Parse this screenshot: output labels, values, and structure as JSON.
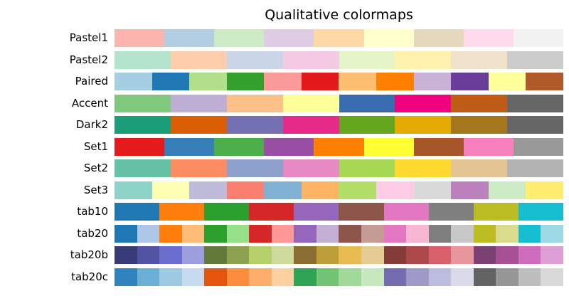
{
  "title": "Qualitative colormaps",
  "chart_data": {
    "type": "heatmap",
    "title": "Qualitative colormaps",
    "description": "Horizontal strips of discrete, equal-width color bands; one strip per qualitative colormap, labeled on the left.",
    "legend_position": "none",
    "grid": false,
    "rows": [
      {
        "name": "Pastel1",
        "colors": [
          "#fbb4ae",
          "#b3cde3",
          "#ccebc5",
          "#decbe4",
          "#fed9a6",
          "#ffffcc",
          "#e5d8bd",
          "#fddaec",
          "#f2f2f2"
        ]
      },
      {
        "name": "Pastel2",
        "colors": [
          "#b3e2cd",
          "#fdcdac",
          "#cbd5e8",
          "#f4cae4",
          "#e6f5c9",
          "#fff2ae",
          "#f1e2cc",
          "#cccccc"
        ]
      },
      {
        "name": "Paired",
        "colors": [
          "#a6cee3",
          "#1f78b4",
          "#b2df8a",
          "#33a02c",
          "#fb9a99",
          "#e31a1c",
          "#fdbf6f",
          "#ff7f00",
          "#cab2d6",
          "#6a3d9a",
          "#ffff99",
          "#b15928"
        ]
      },
      {
        "name": "Accent",
        "colors": [
          "#7fc97f",
          "#beaed4",
          "#fdc086",
          "#ffff99",
          "#386cb0",
          "#f0027f",
          "#bf5b17",
          "#666666"
        ]
      },
      {
        "name": "Dark2",
        "colors": [
          "#1b9e77",
          "#d95f02",
          "#7570b3",
          "#e7298a",
          "#66a61e",
          "#e6ab02",
          "#a6761d",
          "#666666"
        ]
      },
      {
        "name": "Set1",
        "colors": [
          "#e41a1c",
          "#377eb8",
          "#4daf4a",
          "#984ea3",
          "#ff7f00",
          "#ffff33",
          "#a65628",
          "#f781bf",
          "#999999"
        ]
      },
      {
        "name": "Set2",
        "colors": [
          "#66c2a5",
          "#fc8d62",
          "#8da0cb",
          "#e78ac3",
          "#a6d854",
          "#ffd92f",
          "#e5c494",
          "#b3b3b3"
        ]
      },
      {
        "name": "Set3",
        "colors": [
          "#8dd3c7",
          "#ffffb3",
          "#bebada",
          "#fb8072",
          "#80b1d3",
          "#fdb462",
          "#b3de69",
          "#fccde5",
          "#d9d9d9",
          "#bc80bd",
          "#ccebc5",
          "#ffed6f"
        ]
      },
      {
        "name": "tab10",
        "colors": [
          "#1f77b4",
          "#ff7f0e",
          "#2ca02c",
          "#d62728",
          "#9467bd",
          "#8c564b",
          "#e377c2",
          "#7f7f7f",
          "#bcbd22",
          "#17becf"
        ]
      },
      {
        "name": "tab20",
        "colors": [
          "#1f77b4",
          "#aec7e8",
          "#ff7f0e",
          "#ffbb78",
          "#2ca02c",
          "#98df8a",
          "#d62728",
          "#ff9896",
          "#9467bd",
          "#c5b0d5",
          "#8c564b",
          "#c49c94",
          "#e377c2",
          "#f7b6d2",
          "#7f7f7f",
          "#c7c7c7",
          "#bcbd22",
          "#dbdb8d",
          "#17becf",
          "#9edae5"
        ]
      },
      {
        "name": "tab20b",
        "colors": [
          "#393b79",
          "#5254a3",
          "#6b6ecf",
          "#9c9ede",
          "#637939",
          "#8ca252",
          "#b5cf6b",
          "#cedb9c",
          "#8c6d31",
          "#bd9e39",
          "#e7ba52",
          "#e7cb94",
          "#843c39",
          "#ad494a",
          "#d6616b",
          "#e7969c",
          "#7b4173",
          "#a55194",
          "#ce6dbd",
          "#de9ed6"
        ]
      },
      {
        "name": "tab20c",
        "colors": [
          "#3182bd",
          "#6baed6",
          "#9ecae1",
          "#c6dbef",
          "#e6550d",
          "#fd8d3c",
          "#fdae6b",
          "#fdd0a2",
          "#31a354",
          "#74c476",
          "#a1d99b",
          "#c7e9c0",
          "#756bb1",
          "#9e9ac8",
          "#bcbddc",
          "#dadaeb",
          "#636363",
          "#969696",
          "#bdbdbd",
          "#d9d9d9"
        ]
      }
    ]
  }
}
